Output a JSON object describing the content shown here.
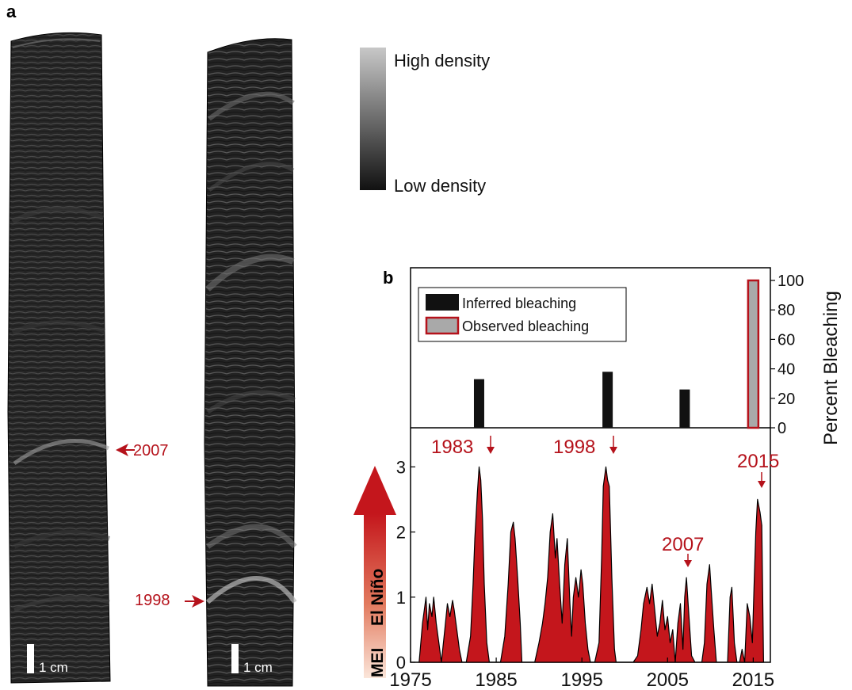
{
  "panel_a": {
    "label": "a",
    "scale_bar_left": "1 cm",
    "scale_bar_right": "1 cm",
    "annotation_2007": "2007",
    "annotation_1998": "1998",
    "colorbar_high": "High density",
    "colorbar_low": "Low density"
  },
  "panel_b": {
    "label": "b",
    "legend_inferred": "Inferred bleaching",
    "legend_observed": "Observed bleaching",
    "mei_axis_label_1": "MEI",
    "mei_axis_label_2": "El Niño",
    "event_labels": [
      "1983",
      "1998",
      "2007",
      "2015"
    ]
  },
  "colors": {
    "accent_red": "#b5121b",
    "mei_fill": "#c4161c",
    "observed_fill": "#a9a9a9",
    "inferred_fill": "#111111"
  },
  "chart_data": [
    {
      "type": "bar",
      "title": "",
      "ylabel": "Percent Bleaching",
      "y_ticks": [
        "0",
        "20",
        "40",
        "60",
        "80",
        "100"
      ],
      "ylim": [
        0,
        100
      ],
      "xlim": [
        1975,
        2017
      ],
      "bars": [
        {
          "year": 1983,
          "value": 33,
          "kind": "inferred"
        },
        {
          "year": 1998,
          "value": 38,
          "kind": "inferred"
        },
        {
          "year": 2007,
          "value": 26,
          "kind": "inferred"
        },
        {
          "year": 2015,
          "value": 100,
          "kind": "observed"
        }
      ],
      "legend": [
        "Inferred bleaching",
        "Observed bleaching"
      ],
      "legend_position": "top-left"
    },
    {
      "type": "area",
      "title": "",
      "xlabel": "",
      "ylabel": "MEI El Niño",
      "x_ticks": [
        "1975",
        "1985",
        "1995",
        "2005",
        "2015"
      ],
      "y_ticks": [
        "0",
        "1",
        "2",
        "3"
      ],
      "xlim": [
        1975,
        2017
      ],
      "ylim": [
        0,
        3.6
      ],
      "series": [
        {
          "x": [
            1976.0,
            1976.4,
            1976.8,
            1977.0,
            1977.2,
            1977.5,
            1977.7,
            1978.0,
            1978.3,
            1978.6,
            1979.0,
            1979.3,
            1979.6,
            1979.9,
            1980.1,
            1980.4,
            1980.7,
            1981.0,
            1981.5,
            1982.0,
            1982.3,
            1982.5,
            1982.8,
            1983.0,
            1983.2,
            1983.4,
            1983.6,
            1983.9,
            1984.2,
            1984.6,
            1985.0,
            1985.5,
            1986.0,
            1986.4,
            1986.7,
            1987.0,
            1987.2,
            1987.5,
            1987.8,
            1988.0,
            1988.3,
            1988.6,
            1989.0,
            1989.5,
            1990.0,
            1990.4,
            1990.7,
            1991.0,
            1991.3,
            1991.6,
            1991.9,
            1992.1,
            1992.4,
            1992.7,
            1993.0,
            1993.3,
            1993.6,
            1993.8,
            1994.0,
            1994.3,
            1994.6,
            1994.9,
            1995.1,
            1995.4,
            1995.7,
            1996.0,
            1996.5,
            1997.0,
            1997.3,
            1997.5,
            1997.8,
            1998.0,
            1998.2,
            1998.5,
            1998.8,
            1999.0,
            1999.5,
            2000.0,
            2000.5,
            2001.0,
            2001.5,
            2001.9,
            2002.2,
            2002.6,
            2002.9,
            2003.2,
            2003.5,
            2003.8,
            2004.1,
            2004.4,
            2004.7,
            2005.0,
            2005.3,
            2005.6,
            2005.9,
            2006.2,
            2006.5,
            2006.8,
            2007.0,
            2007.2,
            2007.5,
            2007.8,
            2008.2,
            2008.6,
            2009.0,
            2009.3,
            2009.6,
            2009.9,
            2010.1,
            2010.4,
            2010.7,
            2011.0,
            2011.5,
            2012.0,
            2012.3,
            2012.5,
            2012.8,
            2013.1,
            2013.4,
            2013.7,
            2014.0,
            2014.3,
            2014.6,
            2014.9,
            2015.1,
            2015.3,
            2015.5,
            2015.8,
            2016.0,
            2016.2
          ],
          "y": [
            0.0,
            0.6,
            1.0,
            0.5,
            0.9,
            0.7,
            1.0,
            0.6,
            0.3,
            0.0,
            0.5,
            0.9,
            0.7,
            0.95,
            0.8,
            0.5,
            0.2,
            0.0,
            0.0,
            0.4,
            1.2,
            1.9,
            2.6,
            3.0,
            2.8,
            2.2,
            1.2,
            0.3,
            0.0,
            0.0,
            0.0,
            0.0,
            0.4,
            1.2,
            2.0,
            2.15,
            1.9,
            1.3,
            0.6,
            0.0,
            0.0,
            0.0,
            0.0,
            0.0,
            0.3,
            0.6,
            0.9,
            1.3,
            2.0,
            2.28,
            1.6,
            1.9,
            1.2,
            0.6,
            1.5,
            1.9,
            0.9,
            0.4,
            1.0,
            1.3,
            1.0,
            1.42,
            1.2,
            0.6,
            0.2,
            0.0,
            0.0,
            0.3,
            1.6,
            2.7,
            3.0,
            2.8,
            2.7,
            1.3,
            0.2,
            0.0,
            0.0,
            0.0,
            0.0,
            0.0,
            0.1,
            0.5,
            0.9,
            1.15,
            0.9,
            1.2,
            0.8,
            0.4,
            0.6,
            0.95,
            0.5,
            0.7,
            0.3,
            0.5,
            0.0,
            0.6,
            0.9,
            0.2,
            1.0,
            1.3,
            0.7,
            0.1,
            0.0,
            0.0,
            0.0,
            0.3,
            1.2,
            1.5,
            1.1,
            0.5,
            0.0,
            0.0,
            0.0,
            0.0,
            1.0,
            1.15,
            0.3,
            0.0,
            0.0,
            0.2,
            0.0,
            0.9,
            0.7,
            0.3,
            1.2,
            2.0,
            2.5,
            2.3,
            2.1,
            0.0
          ]
        }
      ]
    }
  ]
}
